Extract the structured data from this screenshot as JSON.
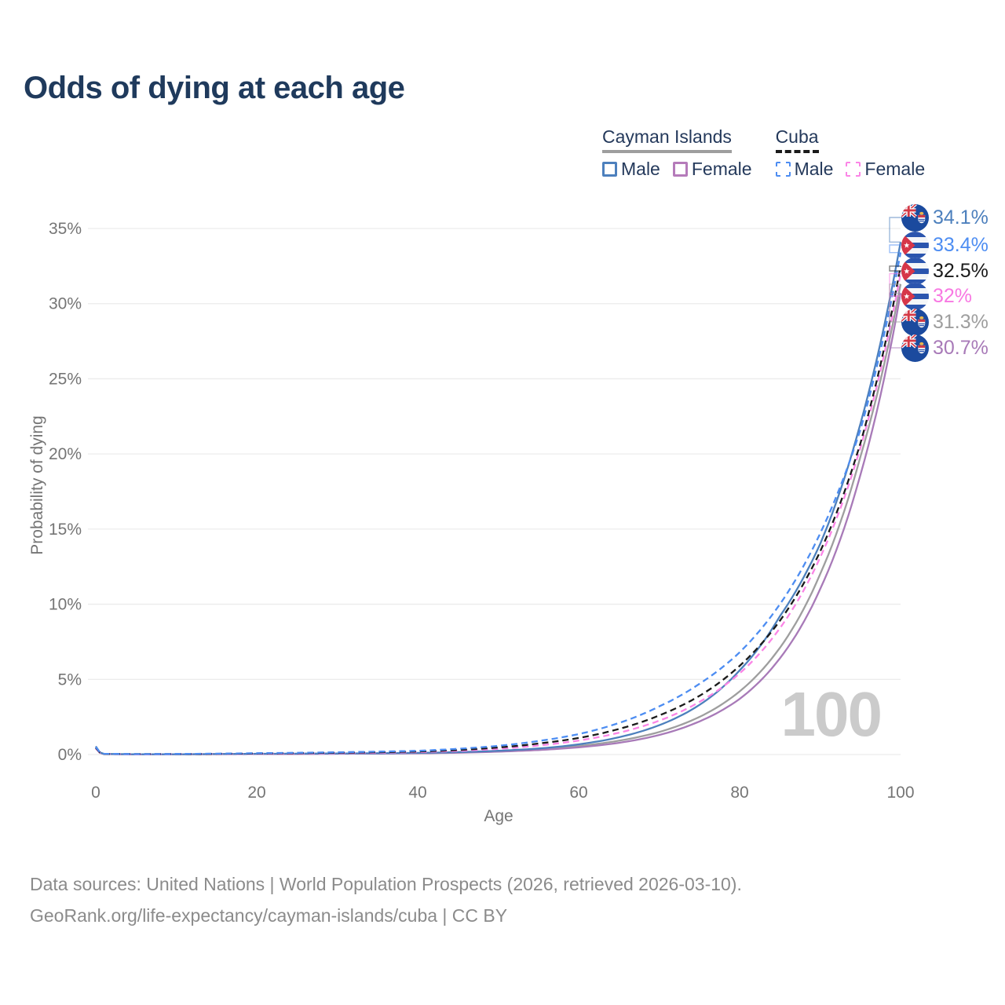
{
  "title": "Odds of dying at each age",
  "legend": {
    "groups": [
      {
        "title": "Cayman Islands",
        "underline_style": "solid",
        "underline_color": "#9e9e9e",
        "items": [
          {
            "label": "Male",
            "color": "#4d80bd",
            "dashed": false
          },
          {
            "label": "Female",
            "color": "#b57bba",
            "dashed": false
          }
        ]
      },
      {
        "title": "Cuba",
        "underline_style": "dashed",
        "underline_color": "#1a1a1a",
        "items": [
          {
            "label": "Male",
            "color": "#4d8df2",
            "dashed": true
          },
          {
            "label": "Female",
            "color": "#fb85e6",
            "dashed": true
          }
        ]
      }
    ]
  },
  "axes": {
    "y_label": "Probability of dying",
    "x_label": "Age",
    "y_ticks": [
      "0%",
      "5%",
      "10%",
      "15%",
      "20%",
      "25%",
      "30%",
      "35%"
    ],
    "y_tick_values": [
      0,
      5,
      10,
      15,
      20,
      25,
      30,
      35
    ],
    "x_ticks": [
      "0",
      "20",
      "40",
      "60",
      "80",
      "100"
    ],
    "x_tick_values": [
      0,
      20,
      40,
      60,
      80,
      100
    ]
  },
  "watermark": "100",
  "end_labels": [
    {
      "value": "34.1%",
      "flag": "cayman",
      "color": "#4d80bd"
    },
    {
      "value": "33.4%",
      "flag": "cuba",
      "color": "#4d8df2"
    },
    {
      "value": "32.5%",
      "flag": "cuba",
      "color": "#1a1a1a"
    },
    {
      "value": "32%",
      "flag": "cuba",
      "color": "#f878e2"
    },
    {
      "value": "31.3%",
      "flag": "cayman",
      "color": "#9e9e9e"
    },
    {
      "value": "30.7%",
      "flag": "cayman",
      "color": "#a87ab8"
    }
  ],
  "footer": {
    "line1": "Data sources: United Nations | World Population Prospects (2026, retrieved 2026-03-10).",
    "line2": "GeoRank.org/life-expectancy/cayman-islands/cuba | CC BY"
  },
  "chart_data": {
    "type": "line",
    "title": "Odds of dying at each age",
    "xlabel": "Age",
    "ylabel": "Probability of dying",
    "xlim": [
      0,
      100
    ],
    "ylim_pct": [
      0,
      35
    ],
    "grid": "horizontal",
    "legend_position": "top-right",
    "x": [
      0,
      1,
      5,
      10,
      20,
      30,
      40,
      45,
      50,
      55,
      60,
      65,
      70,
      75,
      80,
      85,
      90,
      95,
      100
    ],
    "series": [
      {
        "name": "Cayman Islands Male",
        "country": "Cayman Islands",
        "sex": "male",
        "color": "#4d80bd",
        "dash": false,
        "end_label": "34.1%",
        "values_pct": [
          0.55,
          0.04,
          0.02,
          0.02,
          0.05,
          0.07,
          0.11,
          0.16,
          0.25,
          0.4,
          0.68,
          1.15,
          1.95,
          3.3,
          5.6,
          9.2,
          14.0,
          22.0,
          34.1
        ]
      },
      {
        "name": "Cayman Islands Total",
        "country": "Cayman Islands",
        "sex": "both",
        "color": "#9e9e9e",
        "dash": false,
        "end_label": "31.3%",
        "values_pct": [
          0.5,
          0.04,
          0.02,
          0.02,
          0.04,
          0.06,
          0.1,
          0.15,
          0.23,
          0.36,
          0.57,
          0.92,
          1.5,
          2.5,
          4.2,
          7.1,
          12.0,
          19.8,
          31.3
        ]
      },
      {
        "name": "Cayman Islands Female",
        "country": "Cayman Islands",
        "sex": "female",
        "color": "#a87ab8",
        "dash": false,
        "end_label": "30.7%",
        "values_pct": [
          0.45,
          0.03,
          0.015,
          0.02,
          0.03,
          0.05,
          0.08,
          0.12,
          0.19,
          0.3,
          0.48,
          0.78,
          1.3,
          2.2,
          3.7,
          6.4,
          11.0,
          18.6,
          30.7
        ]
      },
      {
        "name": "Cuba Male",
        "country": "Cuba",
        "sex": "male",
        "color": "#4d8df2",
        "dash": true,
        "end_label": "33.4%",
        "values_pct": [
          0.5,
          0.05,
          0.03,
          0.04,
          0.09,
          0.15,
          0.25,
          0.38,
          0.58,
          0.9,
          1.36,
          2.1,
          3.2,
          4.7,
          6.8,
          10.0,
          14.7,
          21.6,
          33.4
        ]
      },
      {
        "name": "Cuba Total",
        "country": "Cuba",
        "sex": "both",
        "color": "#1a1a1a",
        "dash": true,
        "end_label": "32.5%",
        "values_pct": [
          0.45,
          0.04,
          0.03,
          0.03,
          0.07,
          0.12,
          0.2,
          0.3,
          0.47,
          0.73,
          1.1,
          1.7,
          2.6,
          3.9,
          5.9,
          8.9,
          13.5,
          20.7,
          32.5
        ]
      },
      {
        "name": "Cuba Female",
        "country": "Cuba",
        "sex": "female",
        "color": "#fb85e6",
        "dash": true,
        "end_label": "32%",
        "values_pct": [
          0.4,
          0.04,
          0.02,
          0.03,
          0.05,
          0.09,
          0.16,
          0.24,
          0.38,
          0.6,
          0.93,
          1.45,
          2.25,
          3.5,
          5.4,
          8.4,
          13.1,
          20.4,
          32.0
        ]
      }
    ]
  }
}
